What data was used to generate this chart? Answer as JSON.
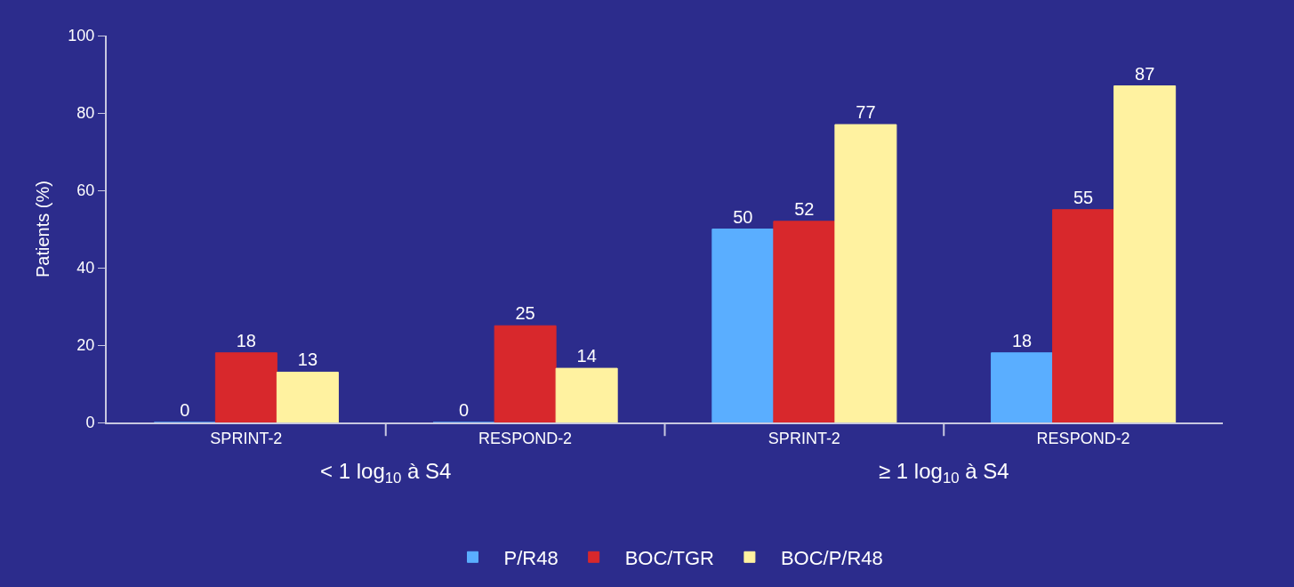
{
  "chart_data": {
    "type": "bar",
    "ylabel": "Patients (%)",
    "categories": [
      "SPRINT-2",
      "RESPOND-2",
      "SPRINT-2",
      "RESPOND-2"
    ],
    "series": [
      {
        "name": "P/R48",
        "color": "#5aaeff",
        "values": [
          0,
          0,
          50,
          18
        ]
      },
      {
        "name": "BOC/TGR",
        "color": "#d8282c",
        "values": [
          18,
          25,
          52,
          55
        ]
      },
      {
        "name": "BOC/P/R48",
        "color": "#fff2a0",
        "values": [
          13,
          14,
          77,
          87
        ]
      }
    ],
    "annotations": [
      "< 1 log$_{10}$ à S4",
      "≥ 1 log$_{10}$ à S4"
    ],
    "ylim": [
      0,
      100
    ],
    "yticks": [
      0,
      20,
      40,
      60,
      80,
      100
    ],
    "data_labels": true,
    "grid": false,
    "legend": "bottom"
  }
}
